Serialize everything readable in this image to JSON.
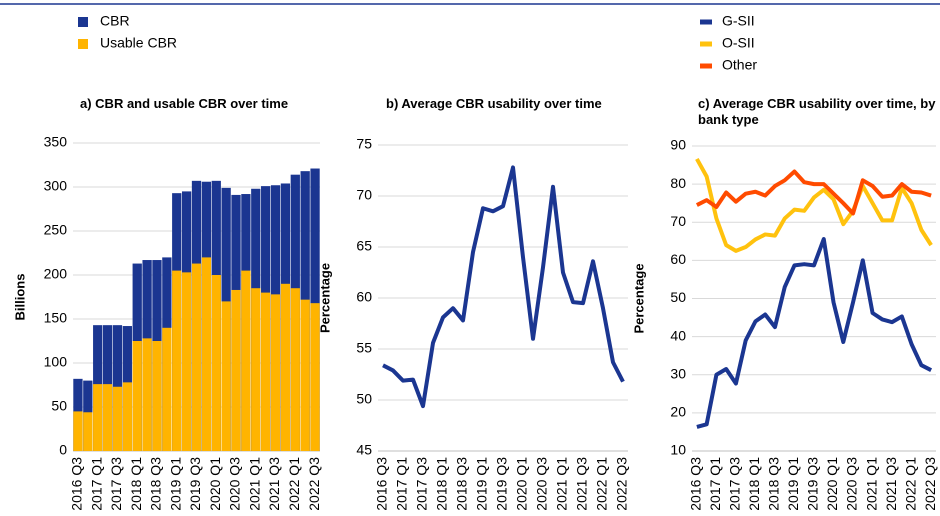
{
  "chart_data": [
    {
      "type": "bar",
      "title": "a) CBR and usable CBR over time",
      "y_label": "Billions",
      "categories": [
        "2016 Q3",
        null,
        "2017 Q1",
        null,
        "2017 Q3",
        null,
        "2018 Q1",
        null,
        "2018 Q3",
        null,
        "2019 Q1",
        null,
        "2019 Q3",
        null,
        "2020 Q1",
        null,
        "2020 Q3",
        null,
        "2021 Q1",
        null,
        "2021 Q3",
        null,
        "2022 Q1",
        null,
        "2022 Q3"
      ],
      "series": [
        {
          "name": "CBR",
          "color": "#1b3691",
          "values": [
            82,
            80,
            143,
            143,
            143,
            142,
            213,
            217,
            217,
            220,
            293,
            295,
            307,
            306,
            307,
            299,
            291,
            292,
            298,
            301,
            302,
            304,
            314,
            318,
            321
          ]
        },
        {
          "name": "Usable CBR",
          "color": "#ffb400",
          "values": [
            45,
            44,
            76,
            76,
            73,
            78,
            125,
            128,
            125,
            140,
            205,
            203,
            213,
            220,
            200,
            170,
            183,
            205,
            185,
            180,
            178,
            190,
            185,
            172,
            168
          ]
        }
      ],
      "ylim": [
        0,
        350
      ],
      "yticks": [
        0,
        50,
        100,
        150,
        200,
        250,
        300,
        350
      ],
      "grid": true,
      "legend": "top-left"
    },
    {
      "type": "line",
      "title": "b) Average CBR usability over time",
      "y_label": "Percentage",
      "categories": [
        "2016 Q3",
        null,
        "2017 Q1",
        null,
        "2017 Q3",
        null,
        "2018 Q1",
        null,
        "2018 Q3",
        null,
        "2019 Q1",
        null,
        "2019 Q3",
        null,
        "2020 Q1",
        null,
        "2020 Q3",
        null,
        "2021 Q1",
        null,
        "2021 Q3",
        null,
        "2022 Q1",
        null,
        "2022 Q3"
      ],
      "values": [
        53.4,
        52.9,
        51.9,
        52.0,
        49.4,
        55.6,
        58.1,
        59.0,
        57.8,
        64.5,
        68.8,
        68.5,
        69.0,
        72.8,
        64.0,
        56.0,
        63.0,
        70.9,
        62.5,
        59.6,
        59.5,
        63.6,
        59.0,
        53.7,
        51.8
      ],
      "color": "#1b3691",
      "ylim": [
        45,
        75
      ],
      "yticks": [
        45,
        50,
        55,
        60,
        65,
        70,
        75
      ],
      "grid": true
    },
    {
      "type": "line",
      "title": "c) Average CBR usability over time, by bank type",
      "y_label": "Percentage",
      "categories": [
        "2016 Q3",
        null,
        "2017 Q1",
        null,
        "2017 Q3",
        null,
        "2018 Q1",
        null,
        "2018 Q3",
        null,
        "2019 Q1",
        null,
        "2019 Q3",
        null,
        "2020 Q1",
        null,
        "2020 Q3",
        null,
        "2021 Q1",
        null,
        "2021 Q3",
        null,
        "2022 Q1",
        null,
        "2022 Q3"
      ],
      "series": [
        {
          "name": "G-SII",
          "color": "#1b3691",
          "values": [
            16.3,
            17,
            30,
            31.5,
            27.7,
            39,
            44,
            45.8,
            42.5,
            53,
            58.7,
            59,
            58.7,
            65.6,
            49,
            38.6,
            49,
            60,
            46.2,
            44.5,
            43.8,
            45.3,
            38,
            32.5,
            31.2
          ]
        },
        {
          "name": "O-SII",
          "color": "#ffc20e",
          "values": [
            86.6,
            82,
            71,
            64,
            62.5,
            63.5,
            65.5,
            66.8,
            66.5,
            71,
            73.3,
            73,
            76.5,
            78.5,
            76,
            69.5,
            73,
            79.5,
            75,
            70.5,
            70.5,
            79,
            75,
            68,
            64
          ]
        },
        {
          "name": "Other",
          "color": "#ff4b00",
          "values": [
            74.5,
            75.8,
            74,
            77.8,
            75.4,
            77.5,
            78,
            77,
            79.5,
            81,
            83.3,
            80.5,
            80,
            80,
            77.5,
            75,
            72.3,
            81,
            79.5,
            76.7,
            77,
            80,
            78,
            77.8,
            77
          ]
        }
      ],
      "ylim": [
        10,
        90
      ],
      "yticks": [
        10,
        20,
        30,
        40,
        50,
        60,
        70,
        80,
        90
      ],
      "grid": true,
      "legend": "top-right"
    }
  ]
}
